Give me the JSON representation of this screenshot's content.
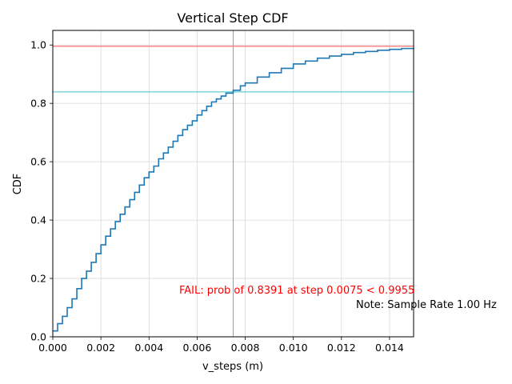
{
  "chart_data": {
    "type": "line",
    "title": "Vertical Step CDF",
    "xlabel": "v_steps (m)",
    "ylabel": "CDF",
    "xlim": [
      0,
      0.015
    ],
    "ylim": [
      0,
      1.05
    ],
    "grid": true,
    "x_ticks": [
      0,
      0.002,
      0.004,
      0.006,
      0.008,
      0.01,
      0.012,
      0.014
    ],
    "x_tick_labels": [
      "0.000",
      "0.002",
      "0.004",
      "0.006",
      "0.008",
      "0.010",
      "0.012",
      "0.014"
    ],
    "y_ticks": [
      0,
      0.2,
      0.4,
      0.6,
      0.8,
      1.0
    ],
    "y_tick_labels": [
      "0.0",
      "0.2",
      "0.4",
      "0.6",
      "0.8",
      "1.0"
    ],
    "series": [
      {
        "color": "#1f77b4",
        "style": "step",
        "x": [
          0.0,
          0.0002,
          0.0004,
          0.0006,
          0.0008,
          0.001,
          0.0012,
          0.0014,
          0.0016,
          0.0018,
          0.002,
          0.0022,
          0.0024,
          0.0026,
          0.0028,
          0.003,
          0.0032,
          0.0034,
          0.0036,
          0.0038,
          0.004,
          0.0042,
          0.0044,
          0.0046,
          0.0048,
          0.005,
          0.0052,
          0.0054,
          0.0056,
          0.0058,
          0.006,
          0.0062,
          0.0064,
          0.0066,
          0.0068,
          0.007,
          0.0072,
          0.0075,
          0.0078,
          0.008,
          0.0085,
          0.009,
          0.0095,
          0.01,
          0.0105,
          0.011,
          0.0115,
          0.012,
          0.0125,
          0.013,
          0.0135,
          0.014,
          0.0145,
          0.015
        ],
        "y": [
          0.02,
          0.045,
          0.07,
          0.1,
          0.13,
          0.165,
          0.2,
          0.225,
          0.255,
          0.285,
          0.315,
          0.345,
          0.37,
          0.395,
          0.42,
          0.445,
          0.47,
          0.495,
          0.52,
          0.545,
          0.565,
          0.585,
          0.61,
          0.63,
          0.65,
          0.67,
          0.69,
          0.71,
          0.725,
          0.74,
          0.76,
          0.775,
          0.79,
          0.805,
          0.815,
          0.825,
          0.835,
          0.845,
          0.86,
          0.87,
          0.89,
          0.905,
          0.92,
          0.935,
          0.945,
          0.955,
          0.962,
          0.968,
          0.974,
          0.978,
          0.982,
          0.985,
          0.988,
          0.99
        ]
      }
    ],
    "reference_lines": [
      {
        "orientation": "horizontal",
        "value": 0.9955,
        "color": "#ff4d4d"
      },
      {
        "orientation": "horizontal",
        "value": 0.8391,
        "color": "#40c4c4"
      },
      {
        "orientation": "vertical",
        "value": 0.0075,
        "color": "#40c4c4"
      }
    ],
    "annotations": {
      "fail_note": "FAIL: prob of 0.8391 at step 0.0075 < 0.9955",
      "fail_color": "#ff0000",
      "rate_note": "Note: Sample Rate 1.00 Hz"
    }
  }
}
